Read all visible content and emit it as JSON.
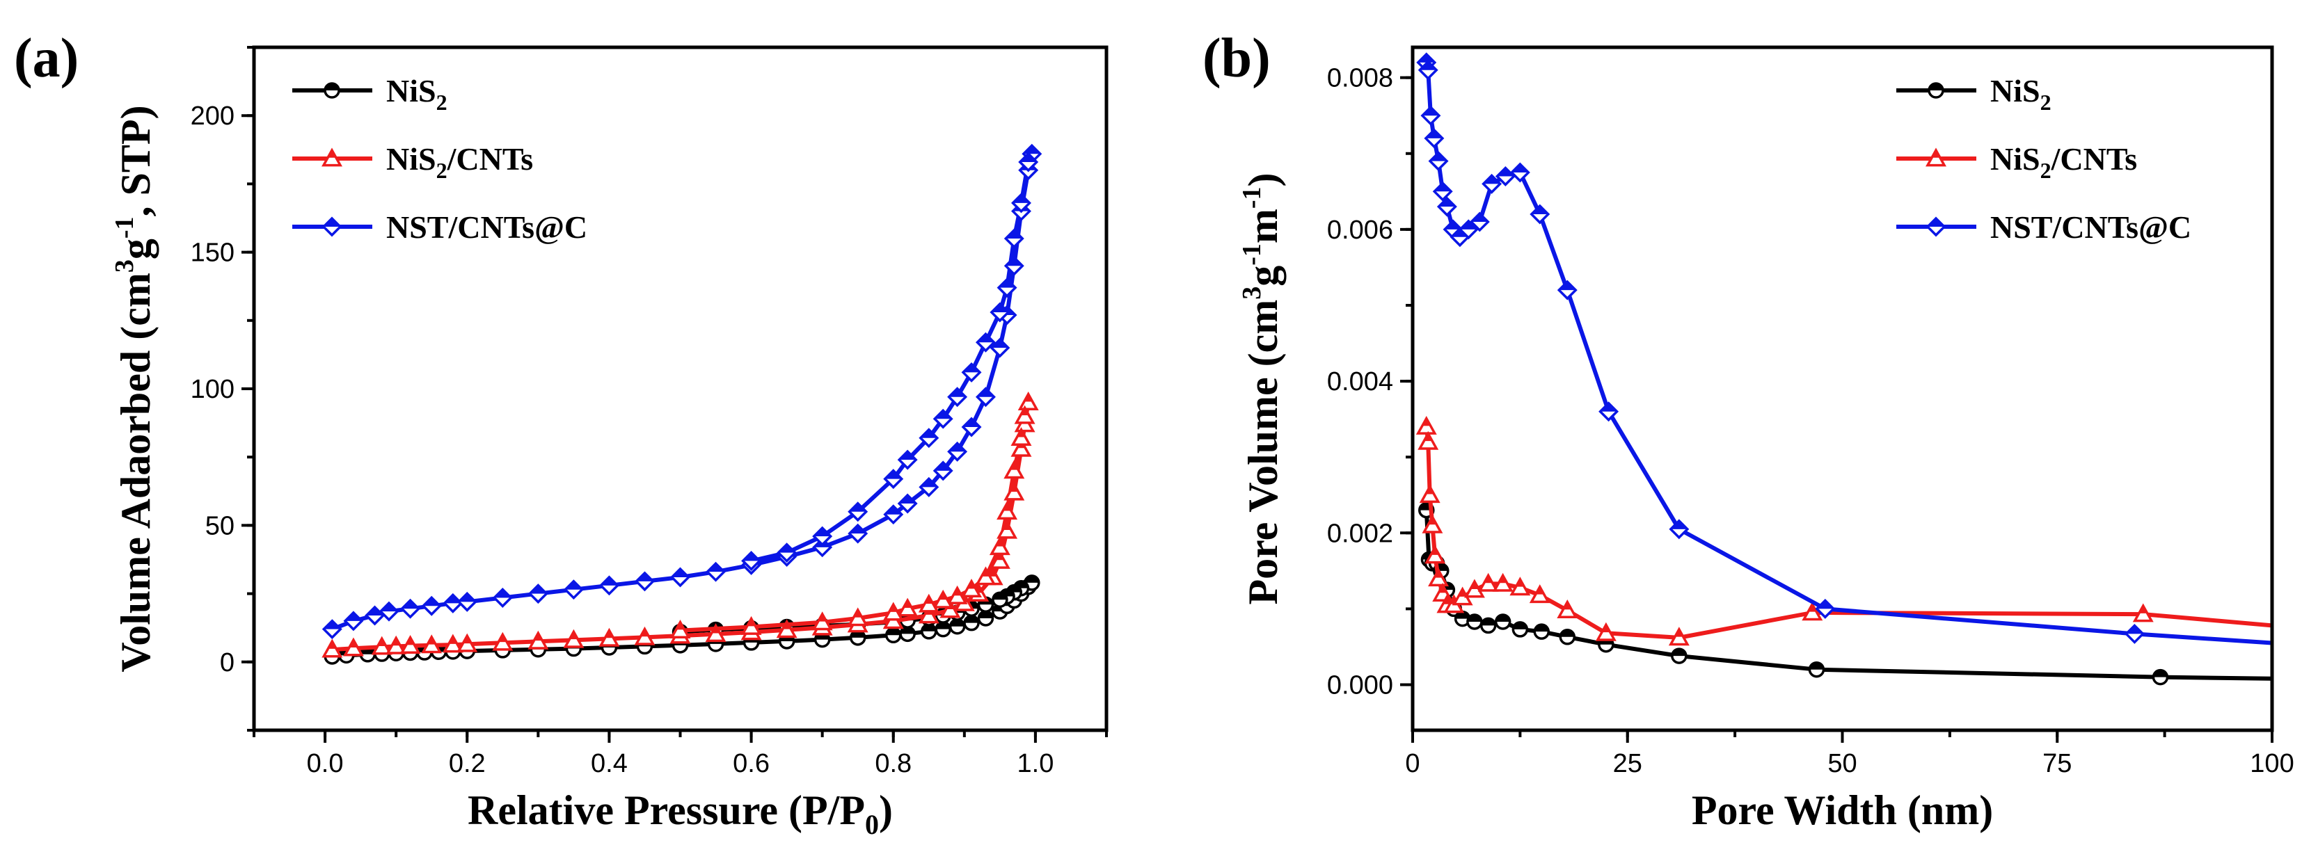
{
  "chart_data": [
    {
      "type": "line",
      "panel_label": "(a)",
      "xlabel": "Relative Pressure (P/P0)",
      "xlabel_parts": {
        "main": "Relative Pressure (P/P",
        "sub": "0",
        "end": ")"
      },
      "ylabel": "Volume Adaorbed (cm3g-1, STP)",
      "ylabel_parts": {
        "main": "Volume Adaorbed (cm",
        "sup1": "3",
        "mid": "g",
        "sup2": "-1",
        "end": ", STP)"
      },
      "xlim": [
        -0.1,
        1.1
      ],
      "ylim": [
        -25,
        225
      ],
      "xticks": [
        0.0,
        0.2,
        0.4,
        0.6,
        0.8,
        1.0
      ],
      "xtick_labels": [
        "0.0",
        "0.2",
        "0.4",
        "0.6",
        "0.8",
        "1.0"
      ],
      "yticks": [
        0,
        50,
        100,
        150,
        200
      ],
      "ytick_labels": [
        "0",
        "50",
        "100",
        "150",
        "200"
      ],
      "legend_position": "top-left",
      "series": [
        {
          "name": "NiS2",
          "label_main": "NiS",
          "label_sub": "2",
          "label_end": "",
          "color": "#000000",
          "marker": "circle",
          "x": [
            0.01,
            0.03,
            0.06,
            0.08,
            0.1,
            0.12,
            0.14,
            0.16,
            0.18,
            0.2,
            0.25,
            0.3,
            0.35,
            0.4,
            0.45,
            0.5,
            0.55,
            0.6,
            0.65,
            0.7,
            0.75,
            0.8,
            0.82,
            0.85,
            0.87,
            0.89,
            0.91,
            0.93,
            0.95,
            0.96,
            0.97,
            0.98,
            0.99,
            0.995,
            0.98,
            0.97,
            0.96,
            0.95,
            0.93,
            0.91,
            0.89,
            0.87,
            0.85,
            0.82,
            0.8,
            0.75,
            0.7,
            0.65,
            0.6,
            0.55,
            0.5
          ],
          "y": [
            2.0,
            2.4,
            2.8,
            3.0,
            3.2,
            3.4,
            3.5,
            3.7,
            3.8,
            4.0,
            4.3,
            4.6,
            4.9,
            5.3,
            5.7,
            6.1,
            6.6,
            7.1,
            7.6,
            8.2,
            8.9,
            9.8,
            10.3,
            11.2,
            12.0,
            13.0,
            14.3,
            16.0,
            18.5,
            20.5,
            22.5,
            25.0,
            27.5,
            29.0,
            27.0,
            25.5,
            24.0,
            22.8,
            21.0,
            19.5,
            18.0,
            17.0,
            16.0,
            15.2,
            14.6,
            13.8,
            13.2,
            12.8,
            12.3,
            11.8,
            11.0
          ]
        },
        {
          "name": "NiS2/CNTs",
          "label_main": "NiS",
          "label_sub": "2",
          "label_end": "/CNTs",
          "color": "#ee1c1c",
          "marker": "triangle",
          "x": [
            0.01,
            0.04,
            0.08,
            0.1,
            0.12,
            0.15,
            0.18,
            0.2,
            0.25,
            0.3,
            0.35,
            0.4,
            0.45,
            0.5,
            0.55,
            0.6,
            0.65,
            0.7,
            0.75,
            0.8,
            0.85,
            0.88,
            0.9,
            0.92,
            0.94,
            0.95,
            0.96,
            0.97,
            0.98,
            0.985,
            0.99,
            0.985,
            0.98,
            0.97,
            0.96,
            0.95,
            0.93,
            0.91,
            0.89,
            0.87,
            0.85,
            0.82,
            0.8,
            0.75,
            0.7,
            0.6,
            0.5
          ],
          "y": [
            4.5,
            5.0,
            5.5,
            5.7,
            5.9,
            6.1,
            6.3,
            6.5,
            7.0,
            7.5,
            8.0,
            8.5,
            9.0,
            9.6,
            10.2,
            10.9,
            11.7,
            12.6,
            13.7,
            15.0,
            17.0,
            19.0,
            21.5,
            25.0,
            31.0,
            37.0,
            48.0,
            62.0,
            78.0,
            87.0,
            95.0,
            90.0,
            82.0,
            70.0,
            55.0,
            42.0,
            31.0,
            26.5,
            24.0,
            22.5,
            21.0,
            19.5,
            18.0,
            16.0,
            14.5,
            12.8,
            11.5
          ]
        },
        {
          "name": "NST/CNTs@C",
          "label_main": "NST/CNTs@C",
          "label_sub": "",
          "label_end": "",
          "color": "#0a16e6",
          "marker": "diamond",
          "x": [
            0.01,
            0.04,
            0.07,
            0.09,
            0.12,
            0.15,
            0.18,
            0.2,
            0.25,
            0.3,
            0.35,
            0.4,
            0.45,
            0.5,
            0.55,
            0.6,
            0.65,
            0.7,
            0.75,
            0.8,
            0.82,
            0.85,
            0.87,
            0.89,
            0.91,
            0.93,
            0.95,
            0.96,
            0.97,
            0.98,
            0.99,
            0.995,
            0.99,
            0.98,
            0.97,
            0.96,
            0.95,
            0.93,
            0.91,
            0.89,
            0.87,
            0.85,
            0.82,
            0.8,
            0.75,
            0.7,
            0.65,
            0.6
          ],
          "y": [
            12.0,
            15.0,
            17.0,
            18.5,
            19.5,
            20.5,
            21.5,
            22.0,
            23.5,
            25.0,
            26.5,
            28.0,
            29.5,
            31.0,
            33.0,
            35.5,
            38.5,
            42.0,
            47.0,
            54.0,
            58.0,
            64.0,
            70.0,
            77.0,
            86.0,
            97.0,
            115.0,
            127.0,
            145.0,
            165.0,
            180.0,
            186.0,
            183.0,
            168.0,
            155.0,
            137.0,
            128.0,
            117.0,
            106.0,
            97.0,
            89.0,
            82.0,
            74.0,
            67.0,
            55.0,
            46.0,
            40.0,
            37.0
          ]
        }
      ]
    },
    {
      "type": "line",
      "panel_label": "(b)",
      "xlabel": "Pore Width (nm)",
      "ylabel": "Pore Volume (cm3g-1m-1)",
      "ylabel_parts": {
        "main": "Pore Volume (cm",
        "sup1": "3",
        "mid": "g",
        "sup2": "-1",
        "mid2": "m",
        "sup3": "-1",
        "end": ")"
      },
      "xlim": [
        0,
        100
      ],
      "ylim": [
        -0.0006,
        0.0084
      ],
      "xticks": [
        0,
        25,
        50,
        75,
        100
      ],
      "xtick_labels": [
        "0",
        "25",
        "50",
        "75",
        "100"
      ],
      "yticks": [
        0.0,
        0.002,
        0.004,
        0.006,
        0.008
      ],
      "ytick_labels": [
        "0.000",
        "0.002",
        "0.004",
        "0.006",
        "0.008"
      ],
      "legend_position": "top-right",
      "series": [
        {
          "name": "NiS2",
          "label_main": "NiS",
          "label_sub": "2",
          "label_end": "",
          "color": "#000000",
          "marker": "circle",
          "x": [
            1.6,
            1.9,
            2.3,
            2.8,
            3.3,
            4.0,
            4.8,
            5.8,
            7.2,
            8.8,
            10.5,
            12.5,
            15.0,
            18.0,
            22.5,
            31.0,
            47.0,
            87.0,
            100.0
          ],
          "y": [
            0.0023,
            0.00165,
            0.0016,
            0.0016,
            0.0015,
            0.00125,
            0.001,
            0.00087,
            0.00083,
            0.00078,
            0.00083,
            0.00073,
            0.0007,
            0.00063,
            0.00053,
            0.00038,
            0.0002,
            0.0001,
            8e-05
          ]
        },
        {
          "name": "NiS2/CNTs",
          "label_main": "NiS",
          "label_sub": "2",
          "label_end": "/CNTs",
          "color": "#ee1c1c",
          "marker": "triangle",
          "x": [
            1.6,
            1.8,
            2.0,
            2.3,
            2.6,
            3.0,
            3.5,
            4.0,
            4.8,
            5.8,
            7.2,
            8.8,
            10.5,
            12.5,
            14.8,
            18.0,
            22.5,
            31.0,
            46.5,
            85.0,
            100.0
          ],
          "y": [
            0.0034,
            0.0032,
            0.0025,
            0.0021,
            0.0017,
            0.0014,
            0.0012,
            0.00105,
            0.00105,
            0.00115,
            0.00125,
            0.00133,
            0.00133,
            0.00128,
            0.00118,
            0.00098,
            0.00068,
            0.00062,
            0.00095,
            0.00093,
            0.00078
          ]
        },
        {
          "name": "NST/CNTs@C",
          "label_main": "NST/CNTs@C",
          "label_sub": "",
          "label_end": "",
          "color": "#0a16e6",
          "marker": "diamond",
          "x": [
            1.6,
            1.8,
            2.1,
            2.5,
            3.0,
            3.5,
            4.0,
            4.7,
            5.5,
            6.5,
            7.8,
            9.2,
            10.8,
            12.5,
            14.8,
            18.0,
            22.8,
            31.0,
            48.0,
            84.0,
            100.0
          ],
          "y": [
            0.0082,
            0.0081,
            0.0075,
            0.0072,
            0.0069,
            0.0065,
            0.0063,
            0.006,
            0.0059,
            0.006,
            0.0061,
            0.0066,
            0.0067,
            0.00675,
            0.0062,
            0.0052,
            0.0036,
            0.00205,
            0.001,
            0.00067,
            0.00055
          ]
        }
      ]
    }
  ]
}
